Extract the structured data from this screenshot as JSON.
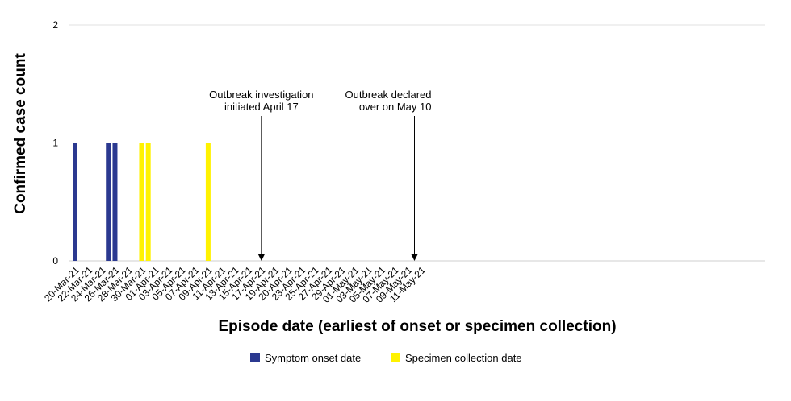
{
  "chart_data": {
    "type": "bar",
    "xlabel": "Episode date (earliest of onset or specimen collection)",
    "ylabel": "Confirmed case count",
    "ylim": [
      0,
      2
    ],
    "yticks": [
      0,
      1,
      2
    ],
    "grid": true,
    "legend_placement": "bottom-center",
    "start_date": "2021-03-20",
    "end_date": "2021-05-11",
    "tick_labels": [
      "20-Mar-21",
      "22-Mar-21",
      "24-Mar-21",
      "26-Mar-21",
      "28-Mar-21",
      "30-Mar-21",
      "01-Apr-21",
      "03-Apr-21",
      "05-Apr-21",
      "07-Apr-21",
      "09-Apr-21",
      "11-Apr-21",
      "13-Apr-21",
      "15-Apr-21",
      "17-Apr-21",
      "19-Apr-21",
      "20-Apr-21",
      "23-Apr-21",
      "25-Apr-21",
      "27-Apr-21",
      "29-Apr-21",
      "01-May-21",
      "03-May-21",
      "05-May-21",
      "07-May-21",
      "09-May-21",
      "11-May-21"
    ],
    "series": [
      {
        "name": "Symptom onset date",
        "color": "#2b3990",
        "points": [
          {
            "date": "2021-03-20",
            "value": 1
          },
          {
            "date": "2021-03-25",
            "value": 1
          },
          {
            "date": "2021-03-26",
            "value": 1
          }
        ]
      },
      {
        "name": "Specimen collection date",
        "color": "#fff200",
        "points": [
          {
            "date": "2021-03-30",
            "value": 1
          },
          {
            "date": "2021-03-31",
            "value": 1
          },
          {
            "date": "2021-04-09",
            "value": 1
          }
        ]
      }
    ],
    "annotations": [
      {
        "lines": [
          "Outbreak investigation",
          "initiated April 17"
        ],
        "date": "2021-04-17"
      },
      {
        "lines": [
          "Outbreak declared",
          "over on May 10"
        ],
        "date": "2021-05-10"
      }
    ]
  }
}
